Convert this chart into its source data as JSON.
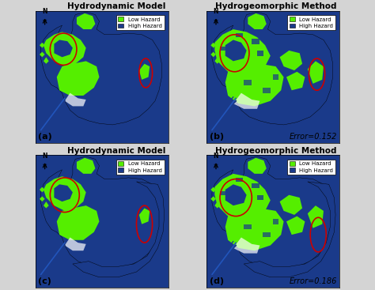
{
  "panels": [
    {
      "label": "(a)",
      "title": "Hydrodynamic Model",
      "error": null,
      "row": 0,
      "col": 0
    },
    {
      "label": "(b)",
      "title": "Hydrogeomorphic Method",
      "error": "Error=0.152",
      "row": 0,
      "col": 1
    },
    {
      "label": "(c)",
      "title": "Hydrodynamic Model",
      "error": null,
      "row": 1,
      "col": 0
    },
    {
      "label": "(d)",
      "title": "Hydrogeomorphic Method",
      "error": "Error=0.186",
      "row": 1,
      "col": 1
    }
  ],
  "low_hazard_color": "#55ee00",
  "high_hazard_color": "#1a3a8a",
  "background_color": "#d4d4d4",
  "circle_color": "#cc0000",
  "legend_low": "Low Hazard",
  "legend_high": "High Hazard",
  "title_fontsize": 7.5,
  "label_fontsize": 8,
  "error_fontsize": 7
}
